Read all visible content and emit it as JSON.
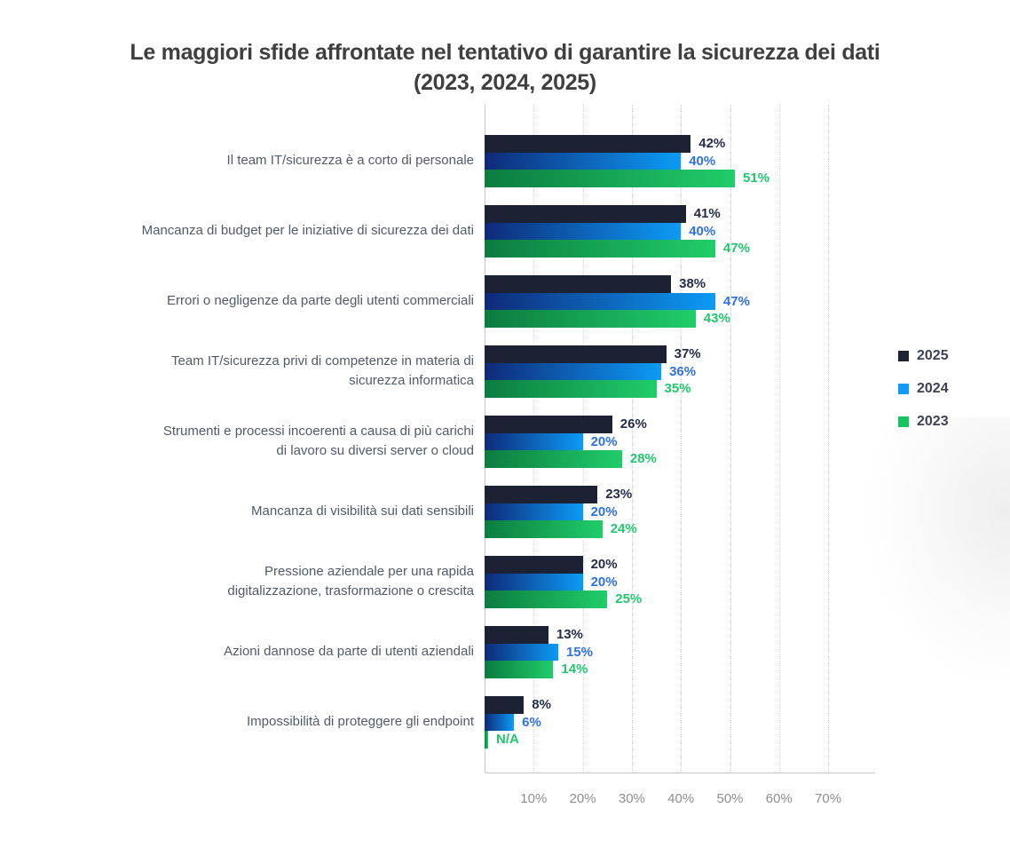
{
  "title": {
    "line1": "Le maggiori sfide affrontate nel tentativo di garantire la sicurezza dei dati",
    "line2": "(2023, 2024, 2025)"
  },
  "legend": [
    {
      "label": "2025",
      "color": "#1e2334"
    },
    {
      "label": "2024",
      "color": "#0f9cf6"
    },
    {
      "label": "2023",
      "color": "#17c55f"
    }
  ],
  "axis": {
    "tick_labels": [
      "10%",
      "20%",
      "30%",
      "40%",
      "50%",
      "60%",
      "70%"
    ],
    "tick_values": [
      10,
      20,
      30,
      40,
      50,
      60,
      70
    ]
  },
  "colors": {
    "bar_2025": "#1d2134",
    "bar_2024_gradient": [
      "#0e2a78",
      "#0c9bf5"
    ],
    "bar_2023_gradient": [
      "#0c7c3f",
      "#20cd6a"
    ],
    "value_2025": "#232c49",
    "value_2024": "#2e71e5",
    "value_2023": "#21c76d",
    "category_text": "#515b68",
    "tick_text": "#8e8e8e",
    "title_text": "#3f3f3f"
  },
  "na_label": "N/A",
  "chart_data": {
    "type": "bar",
    "orientation": "horizontal",
    "title": "Le maggiori sfide affrontate nel tentativo di garantire la sicurezza dei dati (2023, 2024, 2025)",
    "xlabel": "",
    "ylabel": "",
    "xlim": [
      0,
      79.5
    ],
    "x_ticks_percent": [
      10,
      20,
      30,
      40,
      50,
      60,
      70
    ],
    "grid": "vertical-dotted",
    "legend_position": "right",
    "categories": [
      "Il team IT/sicurezza è a corto di personale",
      "Mancanza di budget per le iniziative di sicurezza dei dati",
      "Errori o negligenze da parte degli utenti commerciali",
      "Team IT/sicurezza privi di competenze in materia di\nsicurezza informatica",
      "Strumenti e processi incoerenti a causa di più carichi\ndi lavoro su diversi server o cloud",
      "Mancanza di visibilità sui dati sensibili",
      "Pressione aziendale per una rapida\ndigitalizzazione, trasformazione o crescita",
      "Azioni dannose da parte di utenti aziendali",
      "Impossibilità di proteggere gli endpoint"
    ],
    "series": [
      {
        "name": "2025",
        "values": [
          42,
          41,
          38,
          37,
          26,
          23,
          20,
          13,
          8
        ]
      },
      {
        "name": "2024",
        "values": [
          40,
          40,
          47,
          36,
          20,
          20,
          20,
          15,
          6
        ]
      },
      {
        "name": "2023",
        "values": [
          51,
          47,
          43,
          35,
          28,
          24,
          25,
          14,
          null
        ]
      }
    ]
  }
}
